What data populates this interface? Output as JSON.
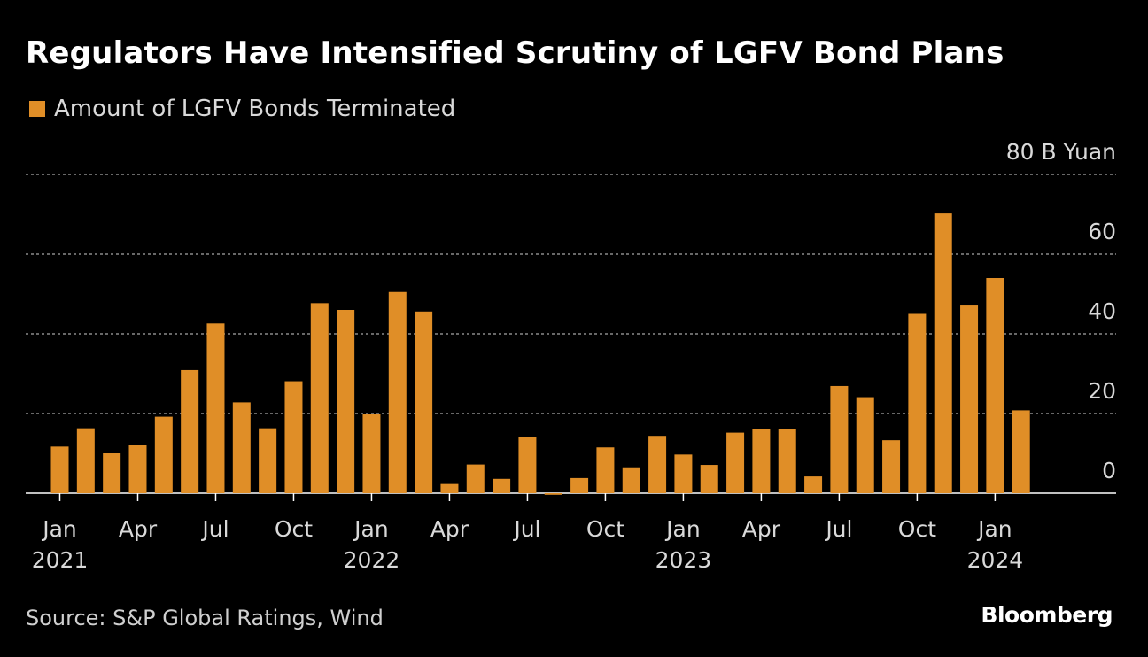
{
  "title": "Regulators Have Intensified Scrutiny of LGFV Bond Plans",
  "source": "Source: S&P Global Ratings, Wind",
  "brand": "Bloomberg",
  "colors": {
    "bar": "#e08e27",
    "background": "#000000",
    "text": "#ffffff",
    "muted": "#d9d9d9",
    "grid": "#8a8a8a"
  },
  "chart_data": {
    "type": "bar",
    "x": [
      "2021-01",
      "2021-02",
      "2021-03",
      "2021-04",
      "2021-05",
      "2021-06",
      "2021-07",
      "2021-08",
      "2021-09",
      "2021-10",
      "2021-11",
      "2021-12",
      "2022-01",
      "2022-02",
      "2022-03",
      "2022-04",
      "2022-05",
      "2022-06",
      "2022-07",
      "2022-08",
      "2022-09",
      "2022-10",
      "2022-11",
      "2022-12",
      "2023-01",
      "2023-02",
      "2023-03",
      "2023-04",
      "2023-05",
      "2023-06",
      "2023-07",
      "2023-08",
      "2023-09",
      "2023-10",
      "2023-11",
      "2023-12",
      "2024-01",
      "2024-02"
    ],
    "series": [
      {
        "name": "Amount of LGFV Bonds Terminated",
        "values": [
          11.7,
          16.3,
          10.0,
          12.0,
          19.2,
          30.9,
          42.6,
          22.8,
          16.3,
          28.1,
          47.7,
          46.0,
          20.0,
          50.5,
          45.6,
          2.3,
          7.2,
          3.6,
          14.0,
          -0.4,
          3.8,
          11.5,
          6.5,
          14.4,
          9.7,
          7.1,
          15.2,
          16.1,
          16.1,
          4.2,
          26.9,
          24.1,
          13.3,
          45.0,
          70.2,
          47.1,
          54.0,
          20.8
        ]
      }
    ],
    "y_axis": {
      "min": 0,
      "max": 80,
      "ticks": [
        {
          "value": 0,
          "label": "0"
        },
        {
          "value": 20,
          "label": "20"
        },
        {
          "value": 40,
          "label": "40"
        },
        {
          "value": 60,
          "label": "60"
        },
        {
          "value": 80,
          "label": "80 B Yuan"
        }
      ],
      "position": "right",
      "grid": true
    },
    "x_axis": {
      "ticks": [
        {
          "index": 0,
          "label": "Jan",
          "year": "2021"
        },
        {
          "index": 3,
          "label": "Apr",
          "year": ""
        },
        {
          "index": 6,
          "label": "Jul",
          "year": ""
        },
        {
          "index": 9,
          "label": "Oct",
          "year": ""
        },
        {
          "index": 12,
          "label": "Jan",
          "year": "2022"
        },
        {
          "index": 15,
          "label": "Apr",
          "year": ""
        },
        {
          "index": 18,
          "label": "Jul",
          "year": ""
        },
        {
          "index": 21,
          "label": "Oct",
          "year": ""
        },
        {
          "index": 24,
          "label": "Jan",
          "year": "2023"
        },
        {
          "index": 27,
          "label": "Apr",
          "year": ""
        },
        {
          "index": 30,
          "label": "Jul",
          "year": ""
        },
        {
          "index": 33,
          "label": "Oct",
          "year": ""
        },
        {
          "index": 36,
          "label": "Jan",
          "year": "2024"
        }
      ]
    },
    "legend_placement": "top-left"
  }
}
